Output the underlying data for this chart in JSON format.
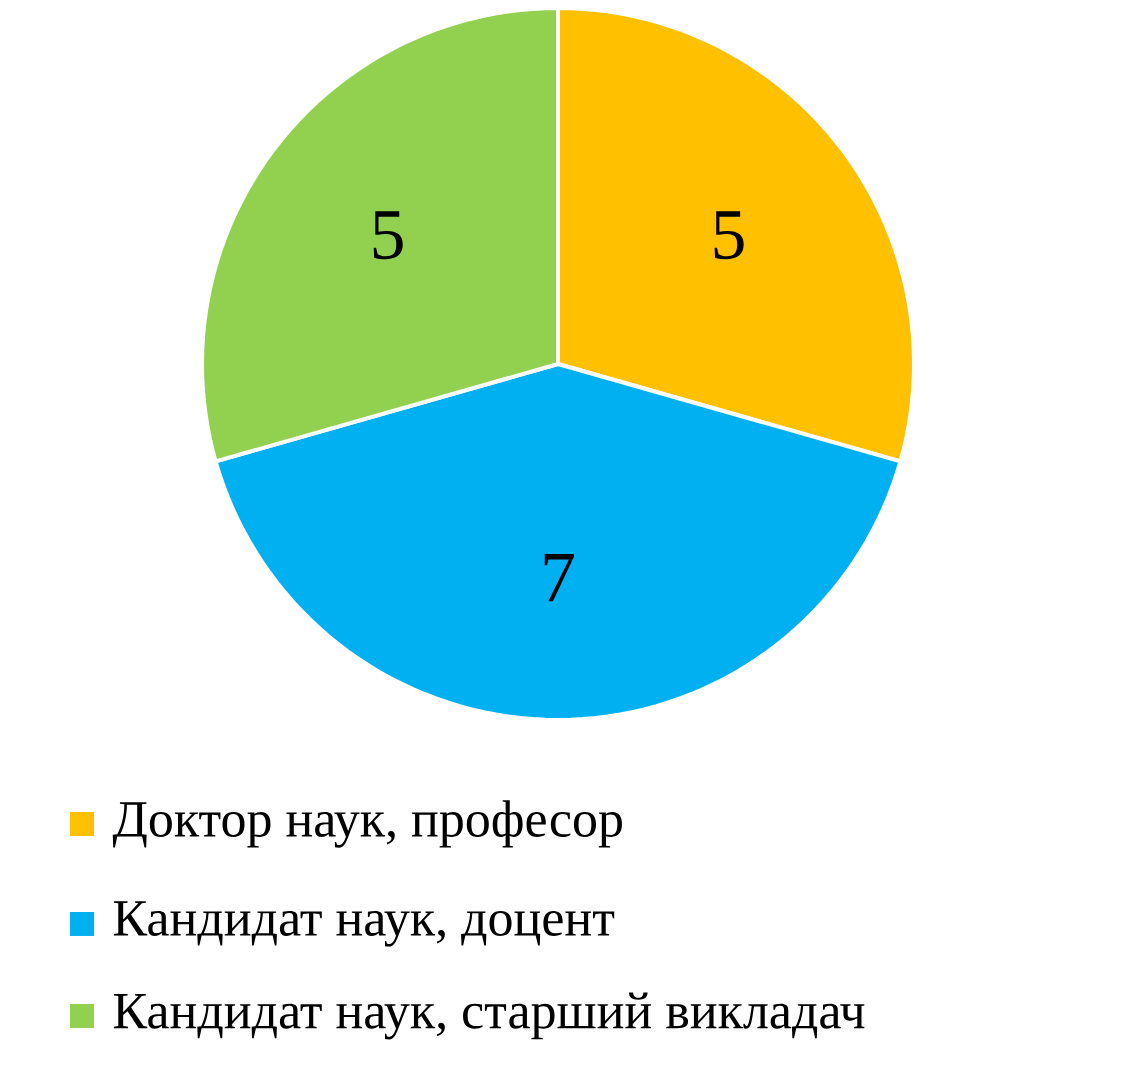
{
  "chart_data": {
    "type": "pie",
    "categories": [
      "Доктор наук, професор",
      "Кандидат наук, доцент",
      "Кандидат наук, старший викладач"
    ],
    "values": [
      5,
      7,
      5
    ],
    "colors": [
      "#ffc000",
      "#00b0f0",
      "#92d050"
    ],
    "data_labels": true,
    "legend": "bottom"
  }
}
